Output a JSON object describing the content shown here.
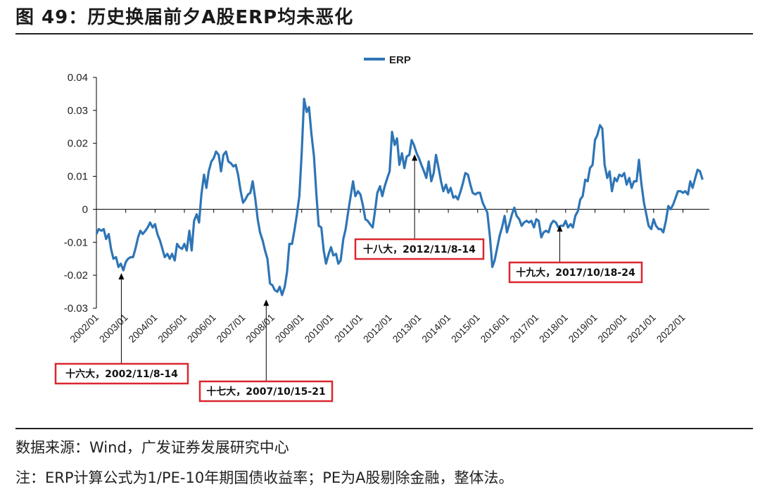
{
  "header": {
    "title": "图 49：历史换届前夕A股ERP均未恶化"
  },
  "footer": {
    "source": "数据来源：Wind，广发证券发展研究中心",
    "note": "注：ERP计算公式为1/PE-10年期国债收益率；PE为A股剔除金融，整体法。"
  },
  "chart_data": {
    "type": "line",
    "title": "",
    "xlabel": "",
    "ylabel": "",
    "ylim": [
      -0.03,
      0.04
    ],
    "yticks": [
      -0.03,
      -0.02,
      -0.01,
      0,
      0.01,
      0.02,
      0.03,
      0.04
    ],
    "ytick_labels": [
      "-0.03",
      "-0.02",
      "-0.01",
      "0",
      "0.01",
      "0.02",
      "0.03",
      "0.04"
    ],
    "xlim": [
      2002.0,
      2022.9
    ],
    "xtick_labels": [
      "2002/01",
      "2003/01",
      "2004/01",
      "2005/01",
      "2006/01",
      "2007/01",
      "2008/01",
      "2009/01",
      "2010/01",
      "2011/01",
      "2012/01",
      "2013/01",
      "2014/01",
      "2015/01",
      "2016/01",
      "2017/01",
      "2018/01",
      "2019/01",
      "2020/01",
      "2021/01",
      "2022/01"
    ],
    "legend": {
      "entries": [
        "ERP"
      ],
      "position": "top-center"
    },
    "colors": {
      "series": "#2e75b6",
      "annotation_border": "#d9272e"
    },
    "series": [
      {
        "name": "ERP",
        "points": [
          [
            2002.0,
            -0.0075
          ],
          [
            2002.08,
            -0.006
          ],
          [
            2002.17,
            -0.0065
          ],
          [
            2002.25,
            -0.006
          ],
          [
            2002.33,
            -0.009
          ],
          [
            2002.42,
            -0.0075
          ],
          [
            2002.5,
            -0.012
          ],
          [
            2002.58,
            -0.015
          ],
          [
            2002.67,
            -0.0145
          ],
          [
            2002.75,
            -0.0175
          ],
          [
            2002.83,
            -0.0165
          ],
          [
            2002.92,
            -0.0185
          ],
          [
            2003.0,
            -0.016
          ],
          [
            2003.08,
            -0.015
          ],
          [
            2003.17,
            -0.0145
          ],
          [
            2003.25,
            -0.0145
          ],
          [
            2003.33,
            -0.012
          ],
          [
            2003.42,
            -0.0085
          ],
          [
            2003.5,
            -0.0065
          ],
          [
            2003.58,
            -0.0075
          ],
          [
            2003.67,
            -0.0065
          ],
          [
            2003.75,
            -0.0055
          ],
          [
            2003.83,
            -0.004
          ],
          [
            2003.92,
            -0.0055
          ],
          [
            2004.0,
            -0.0045
          ],
          [
            2004.08,
            -0.0075
          ],
          [
            2004.17,
            -0.0095
          ],
          [
            2004.25,
            -0.012
          ],
          [
            2004.33,
            -0.0145
          ],
          [
            2004.42,
            -0.0135
          ],
          [
            2004.5,
            -0.015
          ],
          [
            2004.58,
            -0.0135
          ],
          [
            2004.67,
            -0.0155
          ],
          [
            2004.75,
            -0.0105
          ],
          [
            2004.83,
            -0.0115
          ],
          [
            2004.92,
            -0.012
          ],
          [
            2005.0,
            -0.0105
          ],
          [
            2005.08,
            -0.0125
          ],
          [
            2005.17,
            -0.0065
          ],
          [
            2005.25,
            -0.0125
          ],
          [
            2005.33,
            -0.0035
          ],
          [
            2005.42,
            -0.0015
          ],
          [
            2005.5,
            -0.004
          ],
          [
            2005.58,
            0.0045
          ],
          [
            2005.67,
            0.0105
          ],
          [
            2005.75,
            0.0065
          ],
          [
            2005.83,
            0.0115
          ],
          [
            2005.92,
            0.0145
          ],
          [
            2006.0,
            0.0155
          ],
          [
            2006.08,
            0.0175
          ],
          [
            2006.17,
            0.0165
          ],
          [
            2006.25,
            0.0115
          ],
          [
            2006.33,
            0.0165
          ],
          [
            2006.42,
            0.0175
          ],
          [
            2006.5,
            0.0145
          ],
          [
            2006.58,
            0.014
          ],
          [
            2006.67,
            0.013
          ],
          [
            2006.75,
            0.0135
          ],
          [
            2006.83,
            0.0105
          ],
          [
            2006.92,
            0.0055
          ],
          [
            2007.0,
            0.002
          ],
          [
            2007.08,
            0.003
          ],
          [
            2007.17,
            0.0045
          ],
          [
            2007.25,
            0.005
          ],
          [
            2007.33,
            0.0085
          ],
          [
            2007.42,
            0.003
          ],
          [
            2007.5,
            -0.003
          ],
          [
            2007.58,
            -0.007
          ],
          [
            2007.67,
            -0.0095
          ],
          [
            2007.75,
            -0.0125
          ],
          [
            2007.83,
            -0.015
          ],
          [
            2007.92,
            -0.0225
          ],
          [
            2008.0,
            -0.023
          ],
          [
            2008.08,
            -0.0245
          ],
          [
            2008.17,
            -0.025
          ],
          [
            2008.25,
            -0.0235
          ],
          [
            2008.33,
            -0.026
          ],
          [
            2008.42,
            -0.0235
          ],
          [
            2008.5,
            -0.019
          ],
          [
            2008.58,
            -0.0105
          ],
          [
            2008.67,
            -0.0105
          ],
          [
            2008.75,
            -0.0065
          ],
          [
            2008.83,
            -0.002
          ],
          [
            2008.92,
            0.004
          ],
          [
            2009.0,
            0.017
          ],
          [
            2009.08,
            0.0335
          ],
          [
            2009.17,
            0.0295
          ],
          [
            2009.25,
            0.031
          ],
          [
            2009.33,
            0.023
          ],
          [
            2009.42,
            0.016
          ],
          [
            2009.5,
            0.0045
          ],
          [
            2009.58,
            -0.005
          ],
          [
            2009.67,
            -0.0055
          ],
          [
            2009.75,
            -0.0125
          ],
          [
            2009.83,
            -0.0165
          ],
          [
            2009.92,
            -0.0135
          ],
          [
            2010.0,
            -0.0115
          ],
          [
            2010.08,
            -0.014
          ],
          [
            2010.17,
            -0.0135
          ],
          [
            2010.25,
            -0.0165
          ],
          [
            2010.33,
            -0.0155
          ],
          [
            2010.42,
            -0.009
          ],
          [
            2010.5,
            -0.006
          ],
          [
            2010.58,
            -0.001
          ],
          [
            2010.67,
            0.004
          ],
          [
            2010.75,
            0.0085
          ],
          [
            2010.83,
            0.004
          ],
          [
            2010.92,
            0.0055
          ],
          [
            2011.0,
            0.0045
          ],
          [
            2011.08,
            0.0015
          ],
          [
            2011.17,
            -0.003
          ],
          [
            2011.25,
            -0.0035
          ],
          [
            2011.33,
            -0.0045
          ],
          [
            2011.42,
            -0.0055
          ],
          [
            2011.5,
            -0.0005
          ],
          [
            2011.58,
            0.005
          ],
          [
            2011.67,
            0.007
          ],
          [
            2011.75,
            0.004
          ],
          [
            2011.83,
            0.007
          ],
          [
            2011.92,
            0.0095
          ],
          [
            2012.0,
            0.0115
          ],
          [
            2012.08,
            0.0235
          ],
          [
            2012.17,
            0.0195
          ],
          [
            2012.25,
            0.0215
          ],
          [
            2012.33,
            0.0135
          ],
          [
            2012.42,
            0.017
          ],
          [
            2012.5,
            0.0125
          ],
          [
            2012.58,
            0.016
          ],
          [
            2012.67,
            0.0165
          ],
          [
            2012.75,
            0.021
          ],
          [
            2012.83,
            0.0195
          ],
          [
            2012.92,
            0.017
          ],
          [
            2013.0,
            0.0155
          ],
          [
            2013.08,
            0.0135
          ],
          [
            2013.17,
            0.0115
          ],
          [
            2013.25,
            0.0095
          ],
          [
            2013.33,
            0.0145
          ],
          [
            2013.42,
            0.0085
          ],
          [
            2013.5,
            0.011
          ],
          [
            2013.58,
            0.0165
          ],
          [
            2013.67,
            0.0125
          ],
          [
            2013.75,
            0.0085
          ],
          [
            2013.83,
            0.0055
          ],
          [
            2013.92,
            0.0075
          ],
          [
            2014.0,
            0.005
          ],
          [
            2014.08,
            0.0065
          ],
          [
            2014.17,
            0.0035
          ],
          [
            2014.25,
            0.004
          ],
          [
            2014.33,
            0.003
          ],
          [
            2014.42,
            0.0055
          ],
          [
            2014.5,
            0.008
          ],
          [
            2014.58,
            0.011
          ],
          [
            2014.67,
            0.0105
          ],
          [
            2014.75,
            0.0075
          ],
          [
            2014.83,
            0.005
          ],
          [
            2014.92,
            0.0045
          ],
          [
            2015.0,
            0.005
          ],
          [
            2015.08,
            0.005
          ],
          [
            2015.17,
            0.002
          ],
          [
            2015.25,
            0.0005
          ],
          [
            2015.33,
            -0.001
          ],
          [
            2015.42,
            -0.0085
          ],
          [
            2015.5,
            -0.0175
          ],
          [
            2015.58,
            -0.0155
          ],
          [
            2015.67,
            -0.0115
          ],
          [
            2015.75,
            -0.008
          ],
          [
            2015.83,
            -0.0055
          ],
          [
            2015.92,
            -0.002
          ],
          [
            2016.0,
            -0.007
          ],
          [
            2016.08,
            -0.0045
          ],
          [
            2016.17,
            -0.0015
          ],
          [
            2016.25,
            0.0005
          ],
          [
            2016.33,
            -0.002
          ],
          [
            2016.42,
            -0.003
          ],
          [
            2016.5,
            -0.005
          ],
          [
            2016.58,
            -0.004
          ],
          [
            2016.67,
            -0.0035
          ],
          [
            2016.75,
            -0.004
          ],
          [
            2016.83,
            -0.0035
          ],
          [
            2016.92,
            -0.0055
          ],
          [
            2017.0,
            -0.003
          ],
          [
            2017.08,
            -0.0035
          ],
          [
            2017.17,
            -0.0085
          ],
          [
            2017.25,
            -0.007
          ],
          [
            2017.33,
            -0.0065
          ],
          [
            2017.42,
            -0.007
          ],
          [
            2017.5,
            -0.0045
          ],
          [
            2017.58,
            -0.0035
          ],
          [
            2017.67,
            -0.004
          ],
          [
            2017.75,
            -0.0055
          ],
          [
            2017.83,
            -0.005
          ],
          [
            2017.92,
            -0.005
          ],
          [
            2018.0,
            -0.0035
          ],
          [
            2018.08,
            -0.0055
          ],
          [
            2018.17,
            -0.0045
          ],
          [
            2018.25,
            -0.0055
          ],
          [
            2018.33,
            -0.002
          ],
          [
            2018.42,
            -0.0005
          ],
          [
            2018.5,
            0.003
          ],
          [
            2018.58,
            0.004
          ],
          [
            2018.67,
            0.009
          ],
          [
            2018.75,
            0.0085
          ],
          [
            2018.83,
            0.0125
          ],
          [
            2018.92,
            0.0135
          ],
          [
            2019.0,
            0.021
          ],
          [
            2019.08,
            0.0225
          ],
          [
            2019.17,
            0.0255
          ],
          [
            2019.25,
            0.0245
          ],
          [
            2019.33,
            0.0135
          ],
          [
            2019.42,
            0.0095
          ],
          [
            2019.5,
            0.0115
          ],
          [
            2019.58,
            0.0055
          ],
          [
            2019.67,
            0.0095
          ],
          [
            2019.75,
            0.0085
          ],
          [
            2019.83,
            0.0105
          ],
          [
            2019.92,
            0.01
          ],
          [
            2020.0,
            0.011
          ],
          [
            2020.08,
            0.0075
          ],
          [
            2020.17,
            0.0095
          ],
          [
            2020.25,
            0.0065
          ],
          [
            2020.33,
            0.0085
          ],
          [
            2020.42,
            0.0085
          ],
          [
            2020.5,
            0.015
          ],
          [
            2020.58,
            0.008
          ],
          [
            2020.67,
            0.002
          ],
          [
            2020.75,
            -0.0015
          ],
          [
            2020.83,
            -0.005
          ],
          [
            2020.92,
            -0.006
          ],
          [
            2021.0,
            -0.003
          ],
          [
            2021.08,
            -0.005
          ],
          [
            2021.17,
            -0.006
          ],
          [
            2021.25,
            -0.006
          ],
          [
            2021.33,
            -0.007
          ],
          [
            2021.42,
            -0.0035
          ],
          [
            2021.5,
            0.001
          ],
          [
            2021.58,
            0
          ],
          [
            2021.67,
            0.0015
          ],
          [
            2021.75,
            0.0035
          ],
          [
            2021.83,
            0.0055
          ],
          [
            2021.92,
            0.0055
          ],
          [
            2022.0,
            0.005
          ],
          [
            2022.08,
            0.0055
          ],
          [
            2022.17,
            0.0045
          ],
          [
            2022.25,
            0.0085
          ],
          [
            2022.33,
            0.0065
          ],
          [
            2022.42,
            0.0095
          ],
          [
            2022.5,
            0.012
          ],
          [
            2022.58,
            0.0115
          ],
          [
            2022.67,
            0.009
          ]
        ]
      }
    ],
    "annotations": [
      {
        "label": "十六大，2002/11/8-14",
        "x": 2002.85,
        "y": -0.0185
      },
      {
        "label": "十七大，2007/10/15-21",
        "x": 2007.79,
        "y": -0.0265
      },
      {
        "label": "十八大，2012/11/8-14",
        "x": 2012.85,
        "y": 0.0175
      },
      {
        "label": "十九大，2017/10/18-24",
        "x": 2017.8,
        "y": -0.004
      }
    ]
  }
}
